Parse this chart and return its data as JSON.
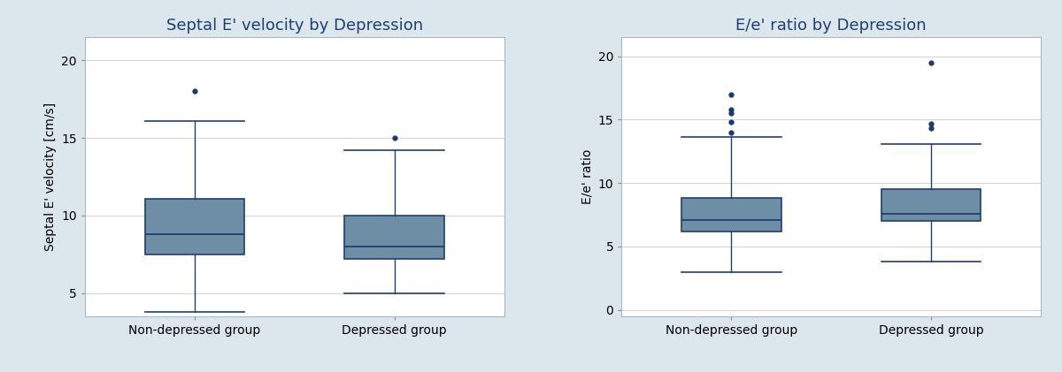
{
  "plot1": {
    "title": "Septal E' velocity by Depression",
    "ylabel": "Septal E' velocity [cm/s]",
    "categories": [
      "Non-depressed group",
      "Depressed group"
    ],
    "boxes": [
      {
        "q1": 7.5,
        "median": 8.8,
        "q3": 11.1,
        "whisker_low": 3.8,
        "whisker_high": 16.1,
        "outliers": [
          18.0
        ]
      },
      {
        "q1": 7.2,
        "median": 8.0,
        "q3": 10.0,
        "whisker_low": 5.0,
        "whisker_high": 14.2,
        "outliers": [
          15.0
        ]
      }
    ],
    "ylim": [
      3.5,
      21.5
    ],
    "yticks": [
      5,
      10,
      15,
      20
    ],
    "box_color": "#6d8ea4",
    "box_edge_color": "#1f3f6e",
    "whisker_color": "#1f3f6e",
    "median_color": "#1f3f6e",
    "outlier_color": "#1a3a6b",
    "bg_color": "#dce6ed",
    "plot_bg_color": "#ffffff",
    "border_color": "#c0cdd6",
    "title_color": "#1f3f6e",
    "title_fontsize": 13,
    "label_fontsize": 10,
    "tick_fontsize": 10,
    "box_width": 0.5,
    "cap_ratio": 0.5
  },
  "plot2": {
    "title": "E/e' ratio by Depression",
    "ylabel": "E/e' ratio",
    "categories": [
      "Non-depressed group",
      "Depressed group"
    ],
    "boxes": [
      {
        "q1": 6.2,
        "median": 7.1,
        "q3": 8.8,
        "whisker_low": 3.0,
        "whisker_high": 13.6,
        "outliers": [
          14.0,
          14.8,
          15.5,
          15.8,
          17.0
        ]
      },
      {
        "q1": 7.0,
        "median": 7.6,
        "q3": 9.5,
        "whisker_low": 3.8,
        "whisker_high": 13.1,
        "outliers": [
          14.3,
          14.7,
          19.5
        ]
      }
    ],
    "ylim": [
      -0.5,
      21.5
    ],
    "yticks": [
      0,
      5,
      10,
      15,
      20
    ],
    "box_color": "#6d8ea4",
    "box_edge_color": "#1f3f6e",
    "whisker_color": "#1f3f6e",
    "median_color": "#1f3f6e",
    "outlier_color": "#1a3a6b",
    "bg_color": "#dce6ed",
    "plot_bg_color": "#ffffff",
    "border_color": "#c0cdd6",
    "title_color": "#1f3f6e",
    "title_fontsize": 13,
    "label_fontsize": 10,
    "tick_fontsize": 10,
    "box_width": 0.5,
    "cap_ratio": 0.5
  }
}
